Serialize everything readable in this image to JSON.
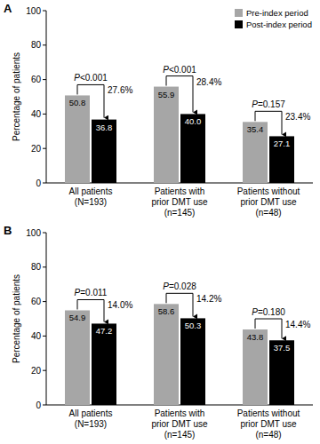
{
  "chart_data": [
    {
      "type": "bar",
      "title": "A",
      "ylabel": "Percentage of patients",
      "categories": [
        "All patients\n(N=193)",
        "Patients with\nprior DMT use\n(n=145)",
        "Patients without\nprior DMT use\n(n=48)"
      ],
      "series": [
        {
          "name": "Pre-index period",
          "color": "#a6a6a6",
          "values": [
            50.8,
            55.9,
            35.4
          ]
        },
        {
          "name": "Post-index period",
          "color": "#000000",
          "values": [
            36.8,
            40.0,
            27.1
          ],
          "value_labels": [
            "36.8",
            "40.0",
            "27.1"
          ]
        }
      ],
      "p_values": [
        "P<0.001",
        "P<0.001",
        "P=0.157"
      ],
      "change_labels": [
        "27.6%",
        "28.4%",
        "23.4%"
      ],
      "ylim": [
        0,
        100
      ],
      "yticks": [
        0,
        20,
        40,
        60,
        80,
        100
      ],
      "data_labels": true,
      "legend": "top-right",
      "grid": false
    },
    {
      "type": "bar",
      "title": "B",
      "ylabel": "Percentage of patients",
      "categories": [
        "All patients\n(N=193)",
        "Patients with\nprior DMT use\n(n=145)",
        "Patients without\nprior DMT use\n(n=48)"
      ],
      "series": [
        {
          "name": "Pre-index period",
          "color": "#a6a6a6",
          "values": [
            54.9,
            58.6,
            43.8
          ]
        },
        {
          "name": "Post-index period",
          "color": "#000000",
          "values": [
            47.2,
            50.3,
            37.5
          ]
        }
      ],
      "p_values": [
        "P=0.011",
        "P=0.028",
        "P=0.180"
      ],
      "change_labels": [
        "14.0%",
        "14.2%",
        "14.4%"
      ],
      "ylim": [
        0,
        100
      ],
      "yticks": [
        0,
        20,
        40,
        60,
        80,
        100
      ],
      "data_labels": true,
      "grid": false
    }
  ]
}
